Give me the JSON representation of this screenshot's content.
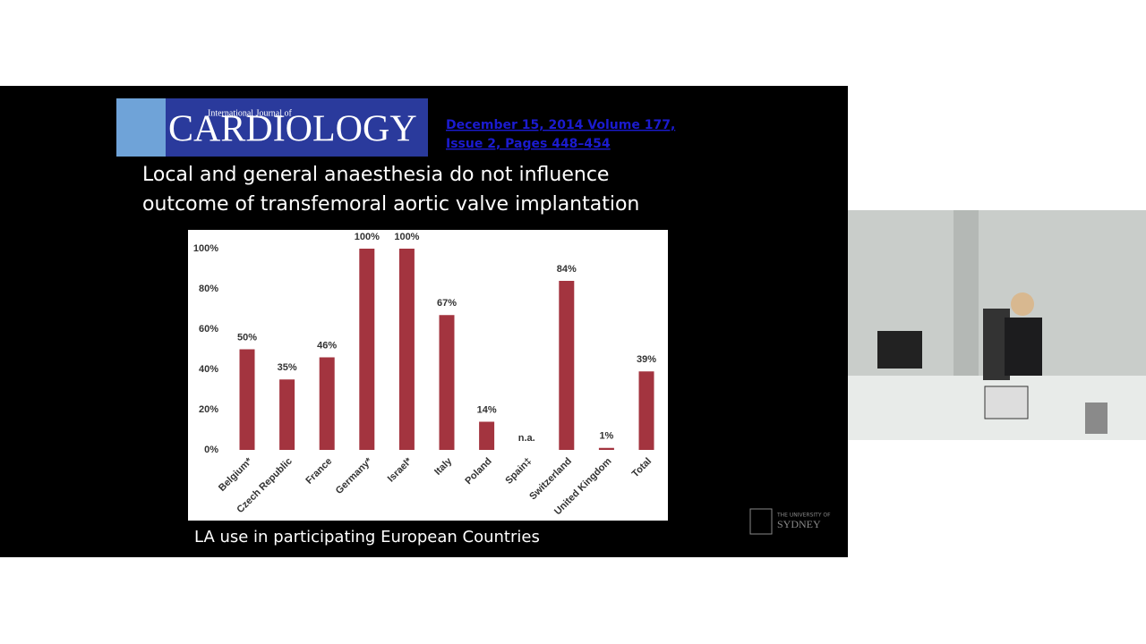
{
  "slide": {
    "journal_small": "International Journal of",
    "journal_name": "CARDIOLOGY",
    "citation_lines": [
      "December 15, 2014 Volume 177,",
      "Issue 2, Pages 448–454"
    ],
    "title_lines": [
      "Local and general anaesthesia do not influence",
      "outcome of transfemoral aortic valve implantation"
    ],
    "caption": "LA use in participating European Countries",
    "university_small": "THE UNIVERSITY OF",
    "university_name": "SYDNEY"
  },
  "chart_data": {
    "type": "bar",
    "categories": [
      "Belgium*",
      "Czech Republic",
      "France",
      "Germany*",
      "Israel*",
      "Italy",
      "Poland",
      "Spain‡",
      "Switzerland",
      "United Kingdom",
      "Total"
    ],
    "values": [
      50,
      35,
      46,
      100,
      100,
      67,
      14,
      null,
      84,
      1,
      39
    ],
    "value_labels": [
      "50%",
      "35%",
      "46%",
      "100%",
      "100%",
      "67%",
      "14%",
      "n.a.",
      "84%",
      "1%",
      "39%"
    ],
    "color": "#a3343f",
    "ylim": [
      0,
      100
    ],
    "yticks": [
      {
        "value": 0,
        "label": "0%"
      },
      {
        "value": 20,
        "label": "20%"
      },
      {
        "value": 40,
        "label": "40%"
      },
      {
        "value": 60,
        "label": "60%"
      },
      {
        "value": 80,
        "label": "80%"
      },
      {
        "value": 100,
        "label": "100%"
      }
    ]
  }
}
